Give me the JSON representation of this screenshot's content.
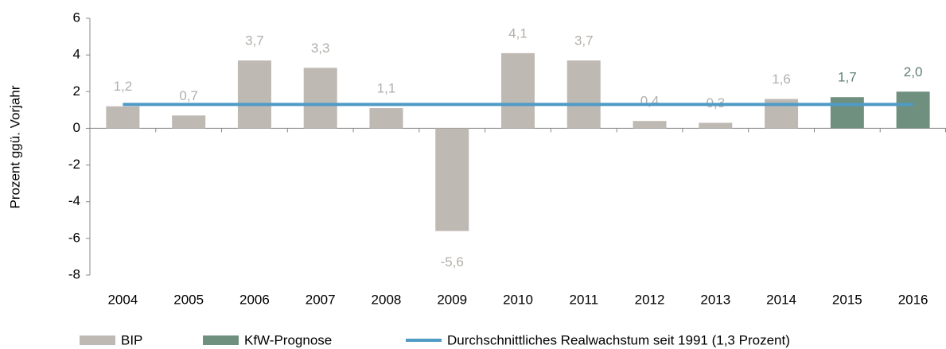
{
  "chart_data": {
    "type": "bar",
    "y_label": "Prozent ggü. Vorjahr",
    "categories": [
      "2004",
      "2005",
      "2006",
      "2007",
      "2008",
      "2009",
      "2010",
      "2011",
      "2012",
      "2013",
      "2014",
      "2015",
      "2016"
    ],
    "series": [
      {
        "name": "BIP",
        "type": "bar",
        "color": "#bfb9b4",
        "label_color": "#b3aeaa",
        "values": [
          1.2,
          0.7,
          3.7,
          3.3,
          1.1,
          -5.6,
          4.1,
          3.7,
          0.4,
          0.3,
          1.6,
          null,
          null
        ],
        "value_labels": [
          "1,2",
          "0,7",
          "3,7",
          "3,3",
          "1,1",
          "-5,6",
          "4,1",
          "3,7",
          "0,4",
          "0,3",
          "1,6",
          null,
          null
        ]
      },
      {
        "name": "KfW-Prognose",
        "type": "bar",
        "color": "#6f8f7f",
        "label_color": "#5f7f6f",
        "values": [
          null,
          null,
          null,
          null,
          null,
          null,
          null,
          null,
          null,
          null,
          null,
          1.7,
          2.0
        ],
        "value_labels": [
          null,
          null,
          null,
          null,
          null,
          null,
          null,
          null,
          null,
          null,
          null,
          "1,7",
          "2,0"
        ]
      },
      {
        "name": "Durchschnittliches Realwachstum seit 1991 (1,3 Prozent)",
        "type": "line",
        "color": "#4f9bc6",
        "values": [
          1.3,
          1.3,
          1.3,
          1.3,
          1.3,
          1.3,
          1.3,
          1.3,
          1.3,
          1.3,
          1.3,
          1.3,
          1.3
        ]
      }
    ],
    "ylim": [
      -8,
      6
    ],
    "yticks": [
      -8,
      -6,
      -4,
      -2,
      0,
      2,
      4,
      6
    ],
    "grid": false
  }
}
